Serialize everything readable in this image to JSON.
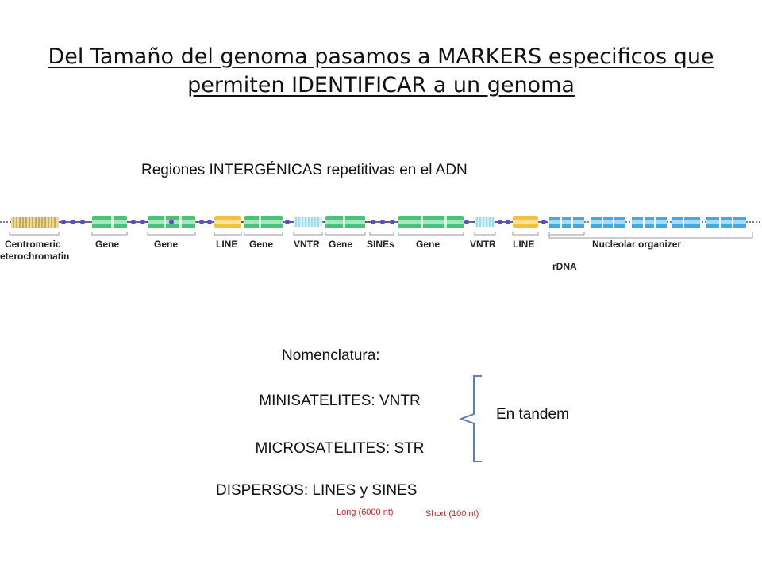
{
  "slide": {
    "title_line1": "Del Tamaño del genoma pasamos a MARKERS especificos que",
    "title_line2": "permiten IDENTIFICAR a un genoma",
    "subtitle": "Regiones INTERGÉNICAS repetitivas en el ADN"
  },
  "diagram": {
    "labels": {
      "centromeric_line1": "Centromeric",
      "centromeric_line2": "eterochromatin",
      "gene": "Gene",
      "line": "LINE",
      "vntr": "VNTR",
      "sines": "SINEs",
      "nucleolar": "Nucleolar organizer",
      "rdna": "rDNA"
    },
    "colors": {
      "gene": "#4bc27a",
      "line": "#f3c23d",
      "vntr": "#8fd3e8",
      "rdna": "#3fa9e0",
      "centromere": "#c89f3a",
      "bead": "#5b4bd1",
      "dna": "#555555"
    }
  },
  "nomenclature": {
    "heading": "Nomenclatura:",
    "minisatelites": "MINISATELITES: VNTR",
    "microsatelites": "MICROSATELITES: STR",
    "dispersos": "DISPERSOS: LINES y SINES",
    "tandem": "En tandem",
    "long_note": "Long (6000 nt)",
    "short_note": "Short (100 nt)"
  }
}
